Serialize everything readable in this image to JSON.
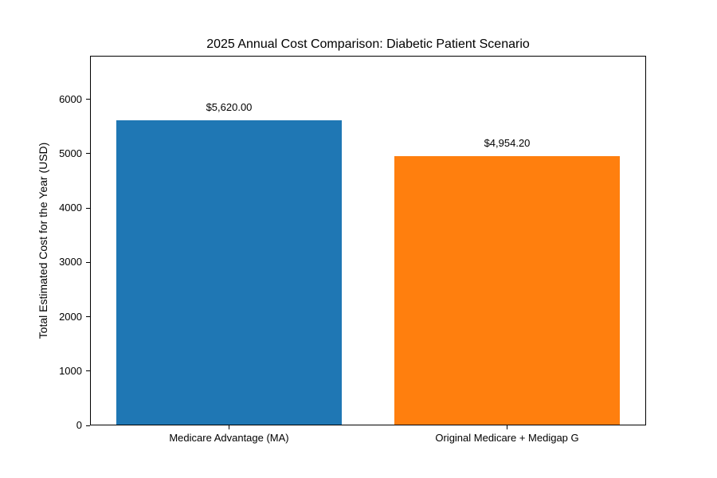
{
  "chart_data": {
    "type": "bar",
    "title": "2025 Annual Cost Comparison: Diabetic Patient Scenario",
    "xlabel": "",
    "ylabel": "Total Estimated Cost for the Year (USD)",
    "categories": [
      "Medicare Advantage (MA)",
      "Original Medicare + Medigap G"
    ],
    "values": [
      5620.0,
      4954.2
    ],
    "bar_labels": [
      "$5,620.00",
      "$4,954.20"
    ],
    "bar_colors": [
      "#1f77b4",
      "#ff7f0e"
    ],
    "yticks": [
      0,
      1000,
      2000,
      3000,
      4000,
      5000,
      6000
    ],
    "ylim": [
      0,
      6800
    ],
    "grid": false,
    "legend_position": "none",
    "background_color": "#ffffff",
    "text_color": "#000000"
  }
}
